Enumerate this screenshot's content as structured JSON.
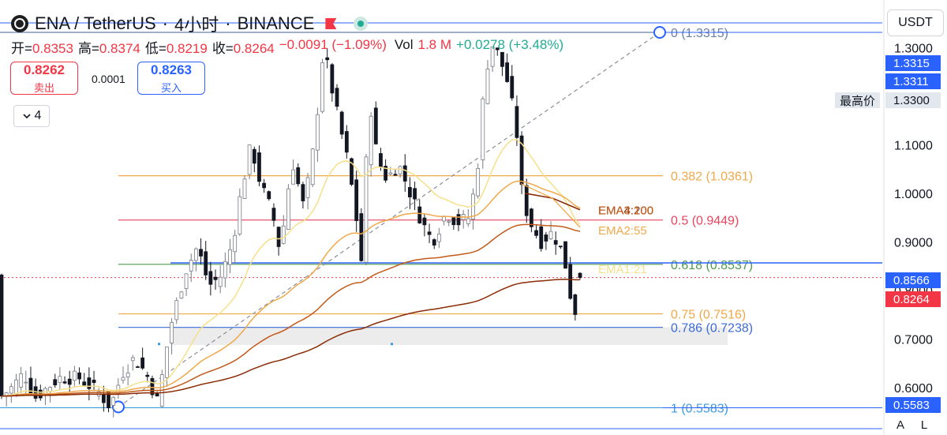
{
  "header": {
    "symbol": "ENA / TetherUS",
    "interval": "4小时",
    "exchange": "BINANCE",
    "sep": "·",
    "ohlc": {
      "open_label": "开=",
      "open": "0.8353",
      "high_label": "高=",
      "high": "0.8374",
      "low_label": "低=",
      "low": "0.8219",
      "close_label": "收=",
      "close": "0.8264",
      "change": "−0.0091 (−1.09%)",
      "vol_label": "Vol",
      "vol": "1.8 M",
      "vol_change": "+0.0278 (+3.48%)"
    }
  },
  "trade": {
    "sell_price": "0.8262",
    "sell_label": "卖出",
    "spread": "0.0001",
    "buy_price": "0.8263",
    "buy_label": "买入"
  },
  "indicator_toggle": {
    "label": "4",
    "icon": "chevron-down-icon"
  },
  "currency": "USDT",
  "price_axis": {
    "ticks": [
      "1.3000",
      "1.2000",
      "1.1000",
      "1.0000",
      "0.9000",
      "0.8000",
      "0.7000",
      "0.6000"
    ],
    "tick_values": [
      1.3,
      1.2,
      1.1,
      1.0,
      0.9,
      0.8,
      0.7,
      0.6
    ],
    "labels": {
      "top_a": "1.3315",
      "top_b": "1.3311",
      "high_tag": "最高价",
      "high_value": "1.3300",
      "line_price": "0.8566",
      "last_price": "0.8264",
      "bottom": "0.5583"
    },
    "buttons": {
      "auto": "A",
      "log": "L"
    }
  },
  "colors": {
    "blue_line": "#2962ff",
    "last_price": "#f23645",
    "up": "#787b86",
    "down": "#131722",
    "ema1": "#f7e08a",
    "ema2": "#f0a94a",
    "ema3": "#c35a1a",
    "ema4": "#8a2c06"
  },
  "chart_data": {
    "type": "candlestick",
    "ylim": [
      0.52,
      1.39
    ],
    "fib_levels": [
      {
        "ratio": "0",
        "label": "0 (1.3315)",
        "value": 1.3315,
        "color": "#6a7fa8"
      },
      {
        "ratio": "0.382",
        "label": "0.382 (1.0361)",
        "value": 1.0361,
        "color": "#f0a94a"
      },
      {
        "ratio": "0.5",
        "label": "0.5 (0.9449)",
        "value": 0.9449,
        "color": "#e8455d"
      },
      {
        "ratio": "0.618",
        "label": "0.618 (0.8537)",
        "value": 0.8537,
        "color": "#4f9a4f"
      },
      {
        "ratio": "0.75",
        "label": "0.75 (0.7516)",
        "value": 0.7516,
        "color": "#f0a94a"
      },
      {
        "ratio": "0.786",
        "label": "0.786 (0.7238)",
        "value": 0.7238,
        "color": "#3d6cd6"
      },
      {
        "ratio": "1",
        "label": "1 (0.5583)",
        "value": 0.5583,
        "color": "#3d9be0"
      }
    ],
    "horizontal_lines": [
      0.8566,
      1.3315
    ],
    "zone": [
      0.6875,
      0.7238
    ],
    "ema_labels": [
      {
        "name": "EMA4:200",
        "value": 0.966,
        "color": "#8a2c06"
      },
      {
        "name": "EMA3:100",
        "value": 0.966,
        "color": "#c35a1a"
      },
      {
        "name": "EMA2:55",
        "value": 0.925,
        "color": "#f0a94a"
      },
      {
        "name": "EMA1:21",
        "value": 0.845,
        "color": "#f7e08a"
      }
    ],
    "trend_line": {
      "from": 0.56,
      "to": 1.3315
    },
    "waypoints": [
      [
        0,
        0.58
      ],
      [
        15,
        0.6
      ],
      [
        30,
        0.63
      ],
      [
        45,
        0.58
      ],
      [
        60,
        0.6
      ],
      [
        75,
        0.62
      ],
      [
        100,
        0.62
      ],
      [
        125,
        0.59
      ],
      [
        140,
        0.56
      ],
      [
        155,
        0.63
      ],
      [
        170,
        0.66
      ],
      [
        185,
        0.63
      ],
      [
        200,
        0.57
      ],
      [
        215,
        0.72
      ],
      [
        235,
        0.84
      ],
      [
        250,
        0.89
      ],
      [
        265,
        0.81
      ],
      [
        280,
        0.83
      ],
      [
        295,
        0.9
      ],
      [
        305,
        1.0
      ],
      [
        318,
        1.1
      ],
      [
        330,
        1.02
      ],
      [
        345,
        0.96
      ],
      [
        355,
        0.88
      ],
      [
        370,
        1.07
      ],
      [
        385,
        0.97
      ],
      [
        398,
        1.1
      ],
      [
        410,
        1.3
      ],
      [
        425,
        1.18
      ],
      [
        440,
        1.07
      ],
      [
        450,
        0.97
      ],
      [
        458,
        0.86
      ],
      [
        468,
        1.2
      ],
      [
        478,
        1.07
      ],
      [
        490,
        1.03
      ],
      [
        505,
        1.06
      ],
      [
        520,
        1.0
      ],
      [
        535,
        0.94
      ],
      [
        548,
        0.9
      ],
      [
        565,
        0.96
      ],
      [
        580,
        0.94
      ],
      [
        595,
        0.95
      ],
      [
        605,
        1.05
      ],
      [
        615,
        1.25
      ],
      [
        625,
        1.31
      ],
      [
        635,
        1.27
      ],
      [
        645,
        1.22
      ],
      [
        655,
        1.12
      ],
      [
        662,
        0.99
      ],
      [
        672,
        0.94
      ],
      [
        685,
        0.9
      ],
      [
        700,
        0.92
      ],
      [
        712,
        0.88
      ],
      [
        720,
        0.83
      ],
      [
        727,
        0.73
      ],
      [
        733,
        0.82
      ],
      [
        737,
        0.83
      ]
    ],
    "candle_count": 120,
    "last": {
      "open": 0.8353,
      "high": 0.8374,
      "low": 0.8219,
      "close": 0.8264
    }
  }
}
